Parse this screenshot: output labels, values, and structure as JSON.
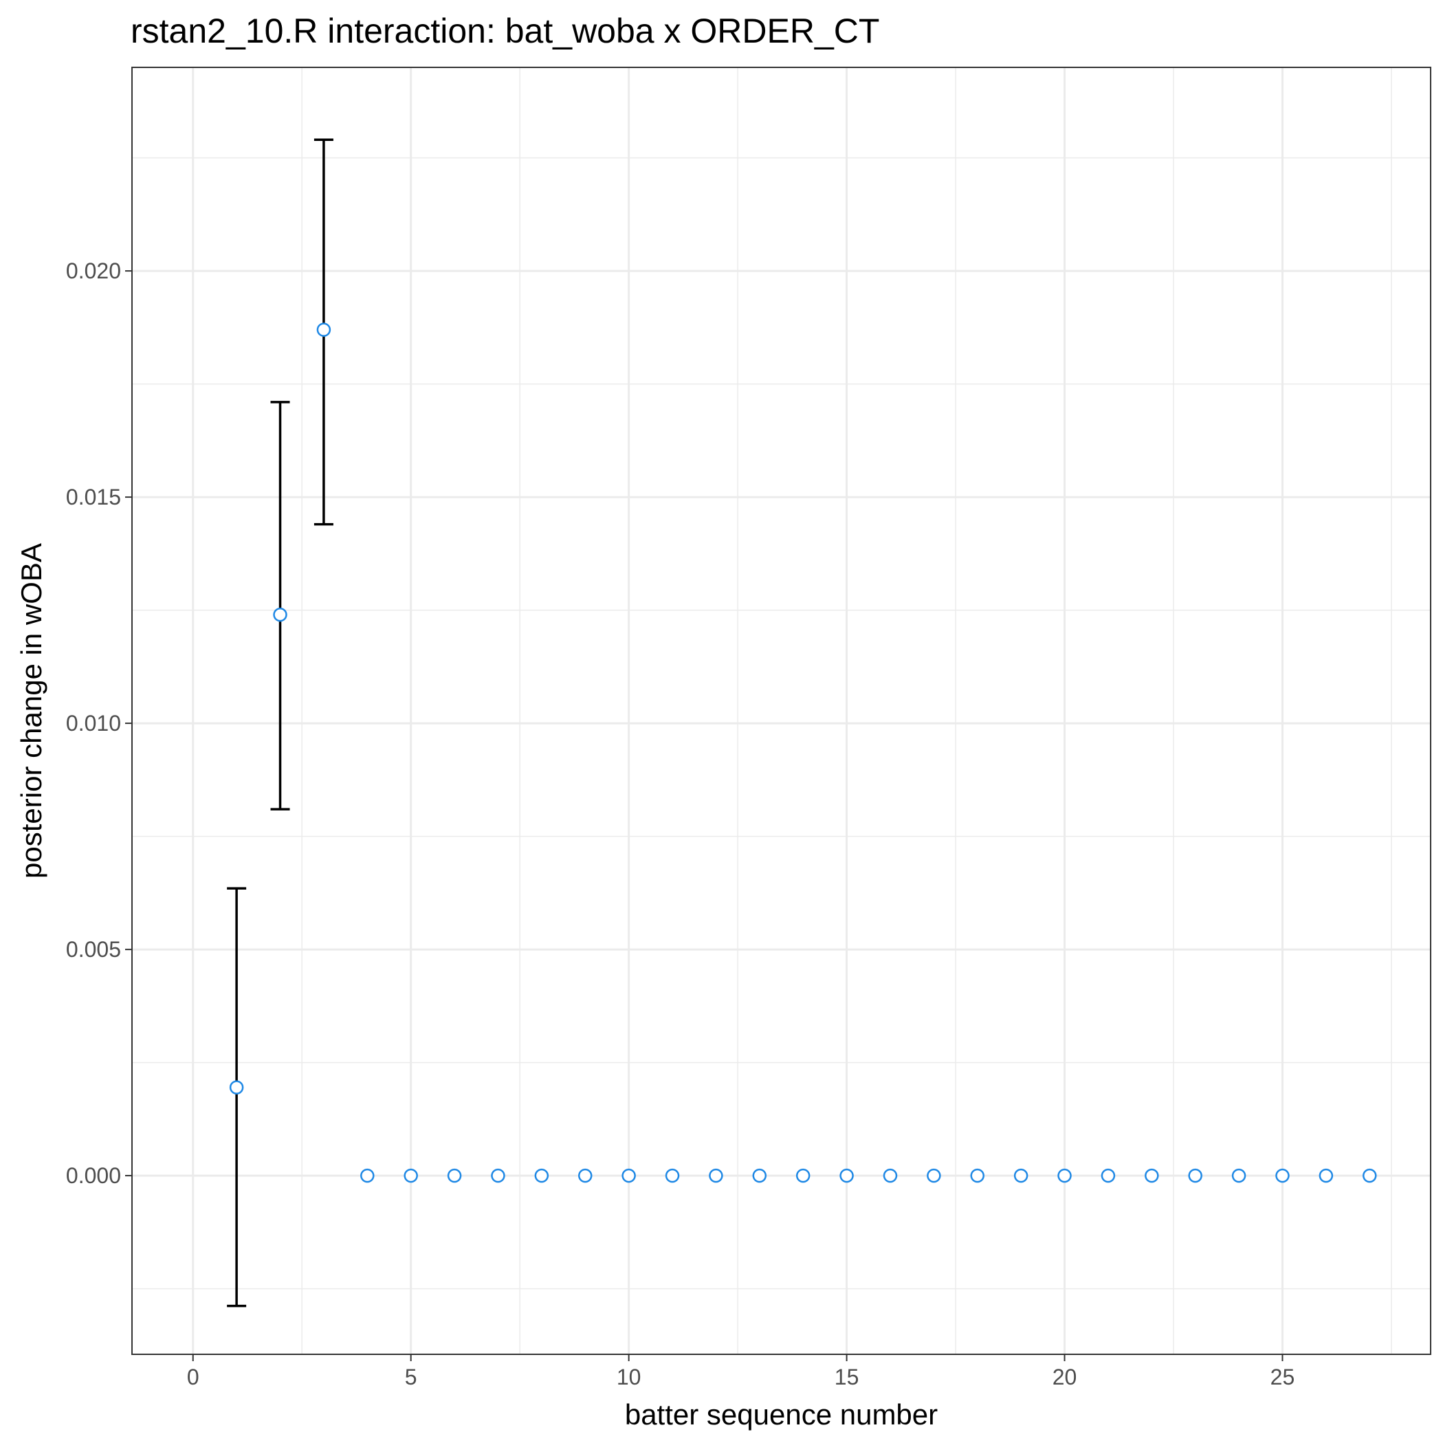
{
  "chart_data": {
    "type": "scatter",
    "title": "rstan2_10.R interaction: bat_woba x ORDER_CT",
    "xlabel": "batter sequence number",
    "ylabel": "posterior change in wOBA",
    "xlim": [
      -1.4,
      28.4
    ],
    "ylim": [
      -0.00395,
      0.0245
    ],
    "x_ticks": [
      0,
      5,
      10,
      15,
      20,
      25
    ],
    "x_tick_labels": [
      "0",
      "5",
      "10",
      "15",
      "20",
      "25"
    ],
    "x_minor_ticks": [
      2.5,
      7.5,
      12.5,
      17.5,
      22.5,
      27.5
    ],
    "y_ticks": [
      0.0,
      0.005,
      0.01,
      0.015,
      0.02
    ],
    "y_tick_labels": [
      "0.000",
      "0.005",
      "0.010",
      "0.015",
      "0.020"
    ],
    "y_minor_ticks": [
      -0.0025,
      0.0025,
      0.0075,
      0.0125,
      0.0175,
      0.0225
    ],
    "grid": true,
    "point_color": "#1e88e5",
    "errorbar_color": "#000000",
    "x": [
      1,
      2,
      3,
      4,
      5,
      6,
      7,
      8,
      9,
      10,
      11,
      12,
      13,
      14,
      15,
      16,
      17,
      18,
      19,
      20,
      21,
      22,
      23,
      24,
      25,
      26,
      27
    ],
    "y": [
      0.00195,
      0.0124,
      0.0187,
      0,
      0,
      0,
      0,
      0,
      0,
      0,
      0,
      0,
      0,
      0,
      0,
      0,
      0,
      0,
      0,
      0,
      0,
      0,
      0,
      0,
      0,
      0,
      0
    ],
    "error_bars": [
      {
        "x": 1,
        "lower": -0.00288,
        "upper": 0.00635
      },
      {
        "x": 2,
        "lower": 0.0081,
        "upper": 0.0171
      },
      {
        "x": 3,
        "lower": 0.0144,
        "upper": 0.0229
      }
    ]
  }
}
